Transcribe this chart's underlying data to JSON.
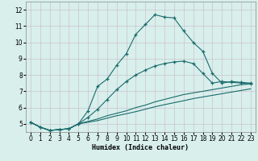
{
  "xlabel": "Humidex (Indice chaleur)",
  "bg_color": "#d8efec",
  "grid_color": "#c8b8c8",
  "line_color": "#1a6b6b",
  "xlim": [
    -0.5,
    23.5
  ],
  "ylim": [
    4.5,
    12.5
  ],
  "xticks": [
    0,
    1,
    2,
    3,
    4,
    5,
    6,
    7,
    8,
    9,
    10,
    11,
    12,
    13,
    14,
    15,
    16,
    17,
    18,
    19,
    20,
    21,
    22,
    23
  ],
  "yticks": [
    5,
    6,
    7,
    8,
    9,
    10,
    11,
    12
  ],
  "line1_x": [
    0,
    1,
    2,
    3,
    4,
    5,
    6,
    7,
    8,
    9,
    10,
    11,
    12,
    13,
    14,
    15,
    16,
    17,
    18,
    19,
    20,
    21,
    22,
    23
  ],
  "line1_y": [
    5.1,
    4.8,
    4.6,
    4.65,
    4.7,
    5.0,
    5.8,
    7.3,
    7.75,
    8.6,
    9.3,
    10.5,
    11.1,
    11.7,
    11.55,
    11.5,
    10.7,
    10.0,
    9.45,
    8.1,
    7.5,
    7.6,
    7.55,
    7.5
  ],
  "line2_x": [
    0,
    1,
    2,
    3,
    4,
    5,
    6,
    7,
    8,
    9,
    10,
    11,
    12,
    13,
    14,
    15,
    16,
    17,
    18,
    19,
    20,
    21,
    22,
    23
  ],
  "line2_y": [
    5.1,
    4.8,
    4.6,
    4.65,
    4.7,
    5.0,
    5.4,
    5.9,
    6.5,
    7.1,
    7.6,
    8.0,
    8.3,
    8.55,
    8.7,
    8.8,
    8.85,
    8.7,
    8.1,
    7.5,
    7.6,
    7.55,
    7.5,
    7.45
  ],
  "line3_x": [
    0,
    1,
    2,
    3,
    4,
    5,
    6,
    7,
    8,
    9,
    10,
    11,
    12,
    13,
    14,
    15,
    16,
    17,
    18,
    19,
    20,
    21,
    22,
    23
  ],
  "line3_y": [
    5.1,
    4.8,
    4.6,
    4.65,
    4.7,
    5.0,
    5.15,
    5.3,
    5.5,
    5.65,
    5.8,
    6.0,
    6.15,
    6.35,
    6.5,
    6.65,
    6.8,
    6.9,
    7.0,
    7.1,
    7.2,
    7.3,
    7.4,
    7.45
  ],
  "line4_x": [
    0,
    1,
    2,
    3,
    4,
    5,
    6,
    7,
    8,
    9,
    10,
    11,
    12,
    13,
    14,
    15,
    16,
    17,
    18,
    19,
    20,
    21,
    22,
    23
  ],
  "line4_y": [
    5.1,
    4.8,
    4.6,
    4.65,
    4.7,
    5.0,
    5.1,
    5.2,
    5.35,
    5.5,
    5.62,
    5.75,
    5.9,
    6.05,
    6.18,
    6.3,
    6.42,
    6.55,
    6.65,
    6.75,
    6.85,
    6.95,
    7.05,
    7.15
  ]
}
